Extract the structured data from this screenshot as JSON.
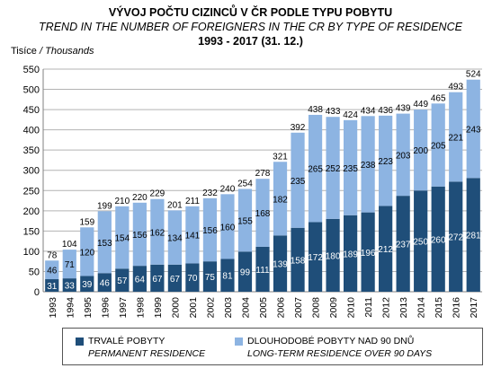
{
  "title": {
    "line1": "VÝVOJ POČTU CIZINCŮ V ČR PODLE TYPU POBYTU",
    "line2": "TREND IN THE NUMBER OF FOREIGNERS IN THE CR BY TYPE OF RESIDENCE",
    "line3": "1993 - 2017 (31. 12.)"
  },
  "ylabel": {
    "cz": "Tisíce",
    "sep": " / ",
    "en": "Thousands"
  },
  "legend": [
    {
      "label_cz": "TRVALÉ POBYTY",
      "label_en": "PERMANENT RESIDENCE",
      "color": "#1f4e79"
    },
    {
      "label_cz": "DLOUHODOBÉ POBYTY NAD 90 DNŮ",
      "label_en": "LONG-TERM RESIDENCE OVER 90 DAYS",
      "color": "#8db4e2"
    }
  ],
  "chart_data": {
    "type": "bar",
    "stacked": true,
    "categories": [
      "1993",
      "1994",
      "1995",
      "1996",
      "1997",
      "1998",
      "1999",
      "2000",
      "2001",
      "2002",
      "2003",
      "2004",
      "2005",
      "2006",
      "2007",
      "2008",
      "2009",
      "2010",
      "2011",
      "2012",
      "2013",
      "2014",
      "2015",
      "2016",
      "2017"
    ],
    "series": [
      {
        "name": "TRVALÉ POBYTY / PERMANENT RESIDENCE",
        "color": "#1f4e79",
        "values": [
          31,
          33,
          39,
          46,
          57,
          64,
          67,
          67,
          70,
          75,
          81,
          99,
          111,
          139,
          158,
          172,
          180,
          189,
          196,
          212,
          237,
          250,
          260,
          272,
          281
        ]
      },
      {
        "name": "DLOUHODOBÉ POBYTY NAD 90 DNŮ / LONG-TERM RESIDENCE OVER 90 DAYS",
        "color": "#8db4e2",
        "values": [
          46,
          71,
          120,
          153,
          154,
          156,
          162,
          134,
          141,
          156,
          160,
          155,
          168,
          182,
          235,
          265,
          252,
          235,
          238,
          223,
          203,
          200,
          205,
          221,
          243
        ]
      }
    ],
    "totals": [
      78,
      104,
      159,
      199,
      210,
      220,
      229,
      201,
      211,
      232,
      240,
      254,
      278,
      321,
      392,
      438,
      433,
      424,
      434,
      436,
      439,
      449,
      465,
      493,
      524
    ],
    "ylim": [
      0,
      550
    ],
    "yticks": [
      0,
      50,
      100,
      150,
      200,
      250,
      300,
      350,
      400,
      450,
      500,
      550
    ],
    "grid": true
  }
}
